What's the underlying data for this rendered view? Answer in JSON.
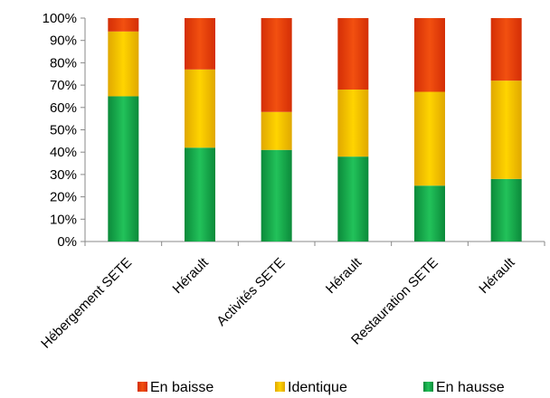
{
  "chart_data": {
    "type": "bar",
    "stacked": true,
    "percent": true,
    "categories": [
      "Hébergement SETE",
      "Hérault",
      "Activités SETE",
      "Hérault",
      "Restauration SETE",
      "Hérault"
    ],
    "series": [
      {
        "name": "En hausse",
        "values": [
          65,
          42,
          41,
          38,
          25,
          28
        ],
        "color": "#14a84a"
      },
      {
        "name": "Identique",
        "values": [
          29,
          35,
          17,
          30,
          42,
          44
        ],
        "color": "#f5c400"
      },
      {
        "name": "En baisse",
        "values": [
          6,
          23,
          42,
          32,
          33,
          28
        ],
        "color": "#e8410e"
      }
    ],
    "yticks": [
      "0%",
      "10%",
      "20%",
      "30%",
      "40%",
      "50%",
      "60%",
      "70%",
      "80%",
      "90%",
      "100%"
    ],
    "ylim": [
      0,
      100
    ],
    "legend": {
      "position": "bottom",
      "order": [
        "En baisse",
        "Identique",
        "En hausse"
      ]
    },
    "grid": false
  }
}
